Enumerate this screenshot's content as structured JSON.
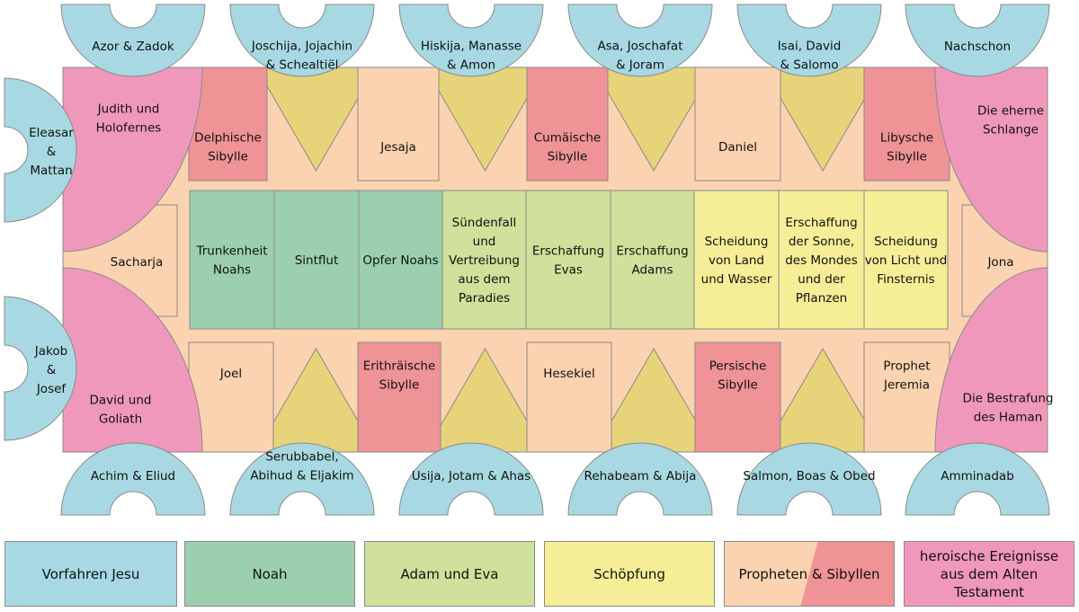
{
  "colors": {
    "ancestors": "#a8d9e2",
    "noah": "#9ccfae",
    "adam_eva": "#cfe19a",
    "creation": "#f6ee96",
    "prophet": "#fcd3b0",
    "sibyl": "#ef9396",
    "heroic": "#f098bb",
    "spandrel": "#e7d37a"
  },
  "lunettes_top": [
    "Azor & Zadok",
    "Joschija, Jojachin\n& Schealtiël",
    "Hiskija, Manasse\n& Amon",
    "Asa, Joschafat\n& Joram",
    "Isai, David\n& Salomo",
    "Nachschon"
  ],
  "lunettes_bottom": [
    "Achim & Eliud",
    "Serubbabel,\nAbihud & Eljakim",
    "Usija, Jotam & Ahas",
    "Rehabeam & Abija",
    "Salmon, Boas & Obed",
    "Amminadab"
  ],
  "lunettes_left": [
    "Eleasar\n&\nMattan",
    "Jakob\n&\nJosef"
  ],
  "corners": {
    "top_left": "Judith und\nHolofernes",
    "top_right": "Die eherne\nSchlange",
    "bottom_left": "David und\nGoliath",
    "bottom_right": "Die Bestrafung\ndes Haman"
  },
  "seers_top": [
    "Delphische\nSibylle",
    "Jesaja",
    "Cumäische\nSibylle",
    "Daniel",
    "Libysche\nSibylle"
  ],
  "seers_bottom": [
    "Joel",
    "Erithräische\nSibylle",
    "Hesekiel",
    "Persische\nSibylle",
    "Prophet\nJeremia"
  ],
  "seers_side": {
    "left": "Sacharja",
    "right": "Jona"
  },
  "ceiling_panels": [
    {
      "label": "Trunkenheit\nNoahs",
      "group": "noah"
    },
    {
      "label": "Sintflut",
      "group": "noah"
    },
    {
      "label": "Opfer Noahs",
      "group": "noah"
    },
    {
      "label": "Sündenfall\nund\nVertreibung\naus dem\nParadies",
      "group": "adam_eva"
    },
    {
      "label": "Erschaffung\nEvas",
      "group": "adam_eva"
    },
    {
      "label": "Erschaffung\nAdams",
      "group": "adam_eva"
    },
    {
      "label": "Scheidung\nvon Land\nund Wasser",
      "group": "creation"
    },
    {
      "label": "Erschaffung\nder Sonne,\ndes Mondes\nund der\nPflanzen",
      "group": "creation"
    },
    {
      "label": "Scheidung\nvon Licht und\nFinsternis",
      "group": "creation"
    }
  ],
  "legend": [
    {
      "label": "Vorfahren Jesu",
      "key": "ancestors"
    },
    {
      "label": "Noah",
      "key": "noah"
    },
    {
      "label": "Adam und Eva",
      "key": "adam_eva"
    },
    {
      "label": "Schöpfung",
      "key": "creation"
    },
    {
      "label": "Propheten & Sibyllen",
      "key": "prophets_sibyls"
    },
    {
      "label": "heroische Ereignisse\naus dem Alten Testament",
      "key": "heroic"
    }
  ]
}
